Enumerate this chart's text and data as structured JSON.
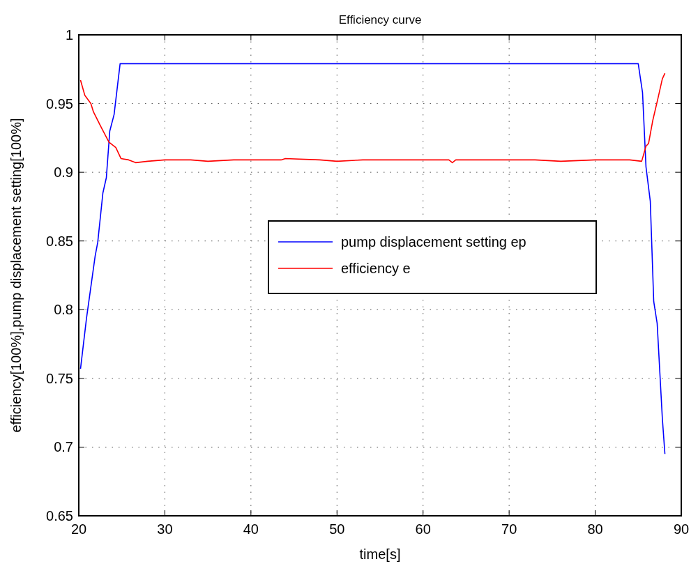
{
  "chart_data": {
    "type": "line",
    "title": "Efficiency curve",
    "xlabel": "time[s]",
    "ylabel": "efficiency[100%],pump displacement setting[100%]",
    "xlim": [
      20,
      90
    ],
    "ylim": [
      0.65,
      1
    ],
    "xticks": [
      20,
      30,
      40,
      50,
      60,
      70,
      80,
      90
    ],
    "yticks": [
      0.65,
      0.7,
      0.75,
      0.8,
      0.85,
      0.9,
      0.95,
      1
    ],
    "grid": true,
    "legend": "center",
    "line_style": "solid",
    "series": [
      {
        "name": "pump displacement setting ep",
        "color": "#0000ff",
        "x": [
          20.2,
          20.9,
          21.9,
          22.2,
          22.8,
          23.2,
          23.6,
          24.1,
          24.8,
          25,
          30,
          40,
          50,
          60,
          70,
          80,
          85,
          85.5,
          85.9,
          86.4,
          86.8,
          87.2,
          87.8,
          88.1
        ],
        "values": [
          0.757,
          0.794,
          0.839,
          0.849,
          0.885,
          0.896,
          0.93,
          0.942,
          0.979,
          0.979,
          0.979,
          0.979,
          0.979,
          0.979,
          0.979,
          0.979,
          0.979,
          0.958,
          0.904,
          0.879,
          0.806,
          0.79,
          0.721,
          0.695
        ]
      },
      {
        "name": "efficiency e",
        "color": "#ff0000",
        "x": [
          20.2,
          20.7,
          21.4,
          21.7,
          22.5,
          23.5,
          24.3,
          24.9,
          25.8,
          26.6,
          28,
          30,
          33,
          35,
          38,
          40,
          43.5,
          44,
          48,
          50,
          53,
          55,
          58,
          60,
          63,
          63.4,
          63.8,
          66,
          70,
          73,
          76,
          80,
          82,
          84,
          85.4,
          85.9,
          86.2,
          86.7,
          87.3,
          87.8,
          88.1
        ],
        "values": [
          0.967,
          0.956,
          0.95,
          0.944,
          0.934,
          0.922,
          0.918,
          0.91,
          0.909,
          0.907,
          0.908,
          0.909,
          0.909,
          0.908,
          0.909,
          0.909,
          0.909,
          0.91,
          0.909,
          0.908,
          0.909,
          0.909,
          0.909,
          0.909,
          0.909,
          0.907,
          0.909,
          0.909,
          0.909,
          0.909,
          0.908,
          0.909,
          0.909,
          0.909,
          0.908,
          0.919,
          0.921,
          0.938,
          0.954,
          0.968,
          0.972
        ]
      }
    ]
  }
}
